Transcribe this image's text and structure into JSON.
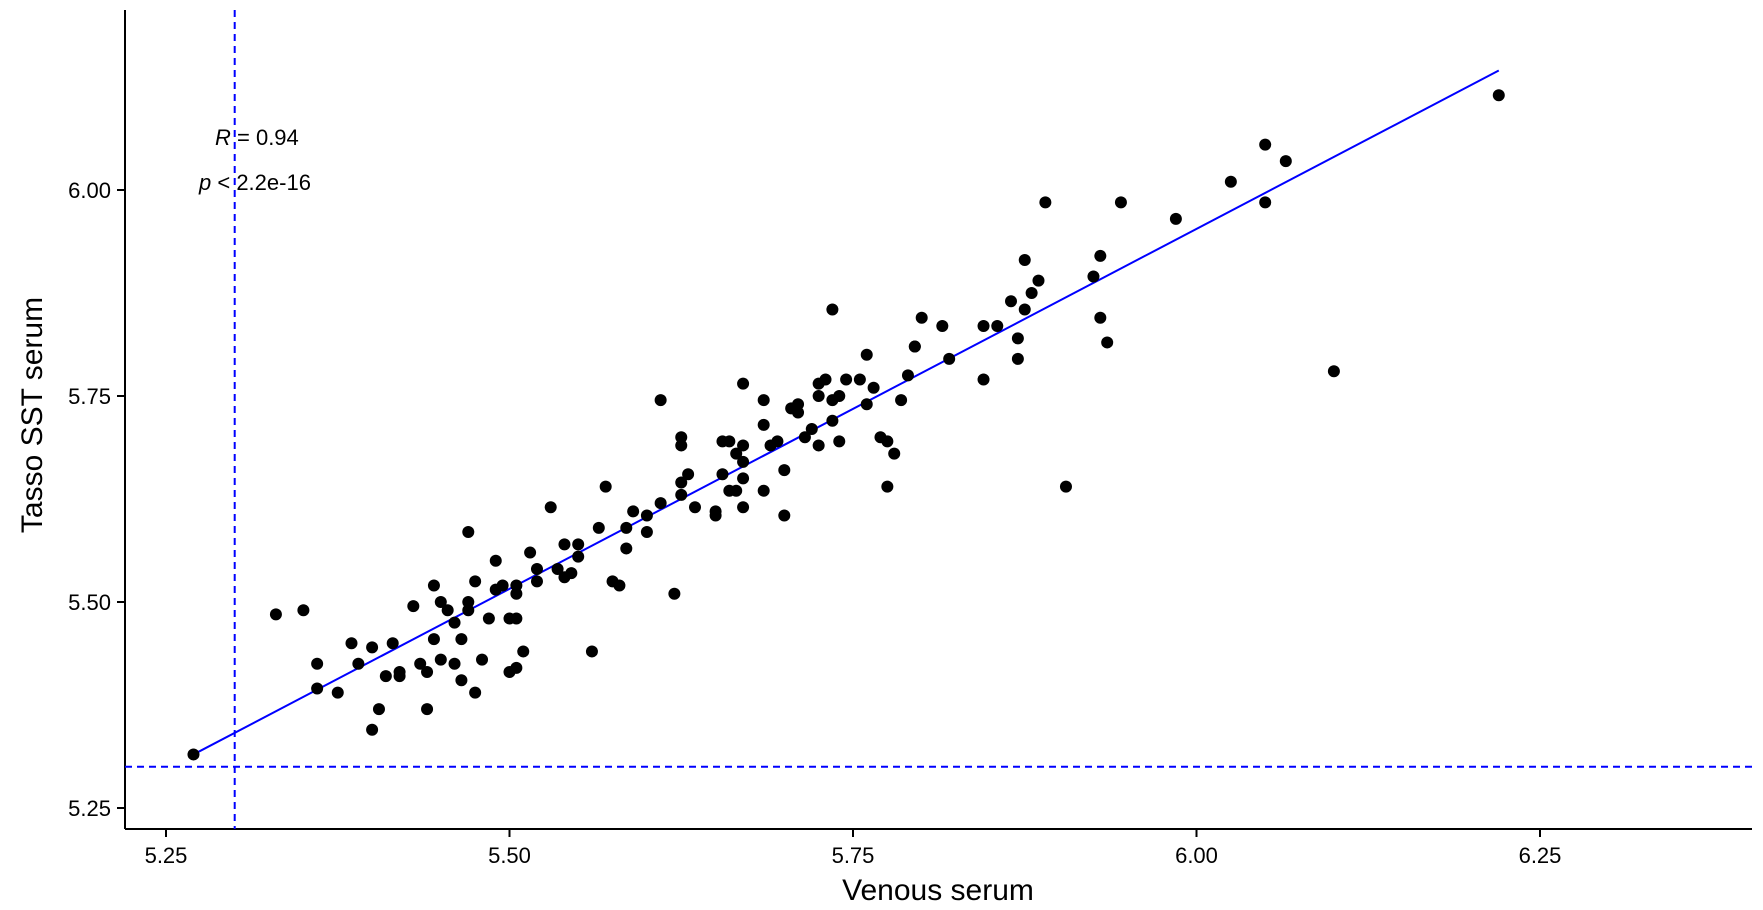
{
  "chart_data": {
    "type": "scatter",
    "xlabel": "Venous serum",
    "ylabel": "Tasso SST serum",
    "xlim": [
      5.22,
      6.27
    ],
    "ylim": [
      5.25,
      6.22
    ],
    "x_ticks": [
      "5.25",
      "5.50",
      "5.75",
      "6.00",
      "6.25"
    ],
    "y_ticks": [
      "5.25",
      "5.50",
      "5.75",
      "6.00"
    ],
    "annotation": {
      "r_label": "R",
      "r_value": " = 0.94",
      "p_label": "p",
      "p_value": " < 2.2e-16"
    },
    "reference_lines": {
      "vertical_x": 5.3,
      "horizontal_y": 5.3,
      "color": "#0000ff",
      "style": "dashed"
    },
    "fit_line": {
      "x": [
        5.27,
        6.22
      ],
      "y": [
        5.315,
        6.145
      ],
      "color": "#0000ff"
    },
    "point_color": "#000000",
    "points": [
      [
        5.27,
        5.315
      ],
      [
        5.33,
        5.485
      ],
      [
        5.35,
        5.49
      ],
      [
        5.36,
        5.395
      ],
      [
        5.36,
        5.425
      ],
      [
        5.375,
        5.39
      ],
      [
        5.385,
        5.45
      ],
      [
        5.39,
        5.425
      ],
      [
        5.4,
        5.345
      ],
      [
        5.4,
        5.445
      ],
      [
        5.405,
        5.37
      ],
      [
        5.41,
        5.41
      ],
      [
        5.415,
        5.45
      ],
      [
        5.42,
        5.41
      ],
      [
        5.42,
        5.415
      ],
      [
        5.43,
        5.495
      ],
      [
        5.435,
        5.425
      ],
      [
        5.44,
        5.37
      ],
      [
        5.44,
        5.415
      ],
      [
        5.445,
        5.52
      ],
      [
        5.445,
        5.455
      ],
      [
        5.45,
        5.43
      ],
      [
        5.45,
        5.5
      ],
      [
        5.455,
        5.49
      ],
      [
        5.46,
        5.475
      ],
      [
        5.46,
        5.425
      ],
      [
        5.465,
        5.455
      ],
      [
        5.465,
        5.405
      ],
      [
        5.47,
        5.5
      ],
      [
        5.47,
        5.49
      ],
      [
        5.475,
        5.525
      ],
      [
        5.475,
        5.39
      ],
      [
        5.47,
        5.585
      ],
      [
        5.48,
        5.43
      ],
      [
        5.485,
        5.48
      ],
      [
        5.49,
        5.515
      ],
      [
        5.49,
        5.55
      ],
      [
        5.495,
        5.52
      ],
      [
        5.5,
        5.415
      ],
      [
        5.5,
        5.48
      ],
      [
        5.505,
        5.42
      ],
      [
        5.505,
        5.48
      ],
      [
        5.505,
        5.51
      ],
      [
        5.505,
        5.52
      ],
      [
        5.51,
        5.44
      ],
      [
        5.515,
        5.56
      ],
      [
        5.52,
        5.54
      ],
      [
        5.52,
        5.525
      ],
      [
        5.53,
        5.615
      ],
      [
        5.535,
        5.54
      ],
      [
        5.54,
        5.57
      ],
      [
        5.54,
        5.53
      ],
      [
        5.545,
        5.535
      ],
      [
        5.55,
        5.555
      ],
      [
        5.55,
        5.57
      ],
      [
        5.56,
        5.44
      ],
      [
        5.565,
        5.59
      ],
      [
        5.57,
        5.64
      ],
      [
        5.575,
        5.525
      ],
      [
        5.58,
        5.52
      ],
      [
        5.585,
        5.59
      ],
      [
        5.585,
        5.565
      ],
      [
        5.59,
        5.61
      ],
      [
        5.6,
        5.585
      ],
      [
        5.6,
        5.605
      ],
      [
        5.61,
        5.62
      ],
      [
        5.61,
        5.745
      ],
      [
        5.62,
        5.51
      ],
      [
        5.625,
        5.63
      ],
      [
        5.625,
        5.645
      ],
      [
        5.625,
        5.69
      ],
      [
        5.625,
        5.7
      ],
      [
        5.63,
        5.655
      ],
      [
        5.635,
        5.615
      ],
      [
        5.65,
        5.605
      ],
      [
        5.65,
        5.61
      ],
      [
        5.655,
        5.695
      ],
      [
        5.655,
        5.655
      ],
      [
        5.66,
        5.635
      ],
      [
        5.66,
        5.695
      ],
      [
        5.665,
        5.635
      ],
      [
        5.665,
        5.68
      ],
      [
        5.67,
        5.69
      ],
      [
        5.67,
        5.615
      ],
      [
        5.67,
        5.65
      ],
      [
        5.67,
        5.67
      ],
      [
        5.67,
        5.765
      ],
      [
        5.685,
        5.745
      ],
      [
        5.685,
        5.715
      ],
      [
        5.685,
        5.635
      ],
      [
        5.69,
        5.69
      ],
      [
        5.695,
        5.695
      ],
      [
        5.7,
        5.605
      ],
      [
        5.7,
        5.66
      ],
      [
        5.705,
        5.735
      ],
      [
        5.71,
        5.73
      ],
      [
        5.71,
        5.74
      ],
      [
        5.715,
        5.7
      ],
      [
        5.72,
        5.71
      ],
      [
        5.725,
        5.765
      ],
      [
        5.725,
        5.75
      ],
      [
        5.725,
        5.69
      ],
      [
        5.73,
        5.77
      ],
      [
        5.735,
        5.855
      ],
      [
        5.735,
        5.745
      ],
      [
        5.735,
        5.72
      ],
      [
        5.74,
        5.75
      ],
      [
        5.74,
        5.695
      ],
      [
        5.745,
        5.77
      ],
      [
        5.755,
        5.77
      ],
      [
        5.76,
        5.8
      ],
      [
        5.76,
        5.74
      ],
      [
        5.765,
        5.76
      ],
      [
        5.77,
        5.7
      ],
      [
        5.775,
        5.695
      ],
      [
        5.78,
        5.68
      ],
      [
        5.775,
        5.64
      ],
      [
        5.785,
        5.745
      ],
      [
        5.79,
        5.775
      ],
      [
        5.795,
        5.81
      ],
      [
        5.795,
        5.81
      ],
      [
        5.8,
        5.845
      ],
      [
        5.815,
        5.835
      ],
      [
        5.82,
        5.795
      ],
      [
        5.845,
        5.77
      ],
      [
        5.845,
        5.835
      ],
      [
        5.855,
        5.835
      ],
      [
        5.865,
        5.865
      ],
      [
        5.87,
        5.82
      ],
      [
        5.87,
        5.795
      ],
      [
        5.875,
        5.855
      ],
      [
        5.875,
        5.915
      ],
      [
        5.88,
        5.875
      ],
      [
        5.885,
        5.89
      ],
      [
        5.89,
        5.985
      ],
      [
        5.905,
        5.64
      ],
      [
        5.925,
        5.895
      ],
      [
        5.93,
        5.92
      ],
      [
        5.93,
        5.845
      ],
      [
        5.935,
        5.815
      ],
      [
        5.945,
        5.985
      ],
      [
        5.985,
        5.965
      ],
      [
        6.025,
        6.01
      ],
      [
        6.05,
        5.985
      ],
      [
        6.05,
        6.055
      ],
      [
        6.065,
        6.035
      ],
      [
        6.1,
        5.78
      ],
      [
        6.22,
        6.115
      ]
    ]
  }
}
